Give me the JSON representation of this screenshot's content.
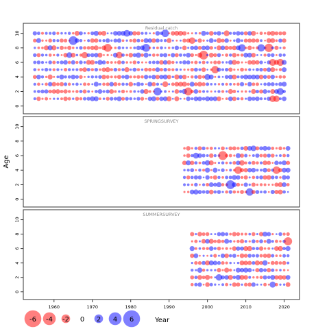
{
  "chart_data": {
    "type": "scatter",
    "subtype": "bubble residual plot",
    "ylabel": "Age",
    "xlabel": "Year",
    "xlim": [
      1952,
      2024
    ],
    "ylim": [
      -0.5,
      11
    ],
    "x_ticks": [
      1960,
      1970,
      1980,
      1990,
      2000,
      2010,
      2020
    ],
    "y_ticks": [
      0,
      2,
      4,
      6,
      8,
      10
    ],
    "colors": {
      "positive": "#0000ff",
      "negative": "#ff0000",
      "panel_border": "#333333",
      "panel_title": "#888888"
    },
    "legend": {
      "placement": "bottom",
      "values": [
        -6,
        -4,
        -2,
        0,
        2,
        4,
        6
      ],
      "labels": [
        "-6",
        "-4",
        "-2",
        "0",
        "2",
        "4",
        "6"
      ],
      "xlabel": "Year"
    },
    "panels": [
      {
        "title": "Residual catch",
        "year_start": 1955,
        "year_end": 2020,
        "age_min": 1,
        "age_max": 10
      },
      {
        "title": "SPRINGSURVEY",
        "year_start": 1994,
        "year_end": 2021,
        "age_min": 1,
        "age_max": 7
      },
      {
        "title": "SUMMERSURVEY",
        "year_start": 1996,
        "year_end": 2021,
        "age_min": 1,
        "age_max": 8
      }
    ]
  }
}
